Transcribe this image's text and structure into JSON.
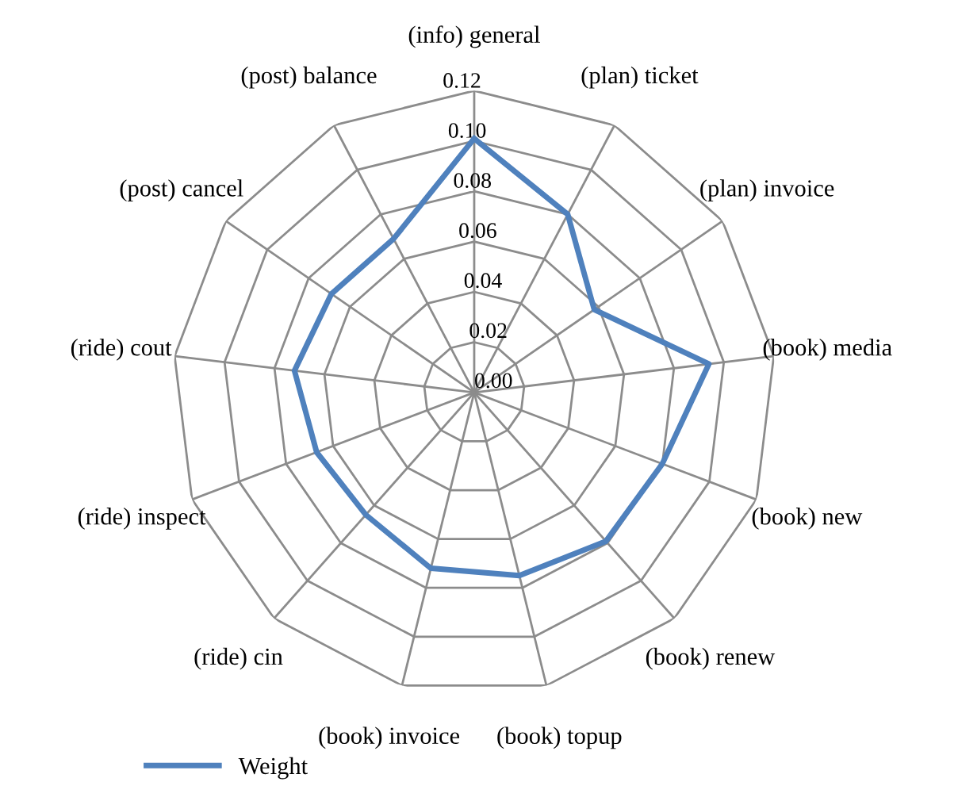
{
  "chart_data": {
    "type": "radar",
    "categories": [
      "(info) general",
      "(plan) ticket",
      "(plan) invoice",
      "(book) media",
      "(book) new",
      "(book) renew",
      "(book) topup",
      "(book) invoice",
      "(ride) cin",
      "(ride) inspect",
      "(ride) cout",
      "(post) cancel",
      "(post) balance"
    ],
    "series": [
      {
        "name": "Weight",
        "color": "#4f81bd",
        "values": [
          0.101,
          0.08,
          0.058,
          0.094,
          0.08,
          0.079,
          0.075,
          0.072,
          0.065,
          0.067,
          0.072,
          0.069,
          0.069
        ]
      }
    ],
    "ylim": [
      0,
      0.12
    ],
    "yticks": [
      {
        "value": 0,
        "label": "0.00"
      },
      {
        "value": 0.02,
        "label": "0.02"
      },
      {
        "value": 0.04,
        "label": "0.04"
      },
      {
        "value": 0.06,
        "label": "0.06"
      },
      {
        "value": 0.08,
        "label": "0.08"
      },
      {
        "value": 0.1,
        "label": "0.10"
      },
      {
        "value": 0.12,
        "label": "0.12"
      }
    ],
    "grid": true,
    "legend": "bottom left",
    "marker": "none",
    "line_style": "solid"
  }
}
